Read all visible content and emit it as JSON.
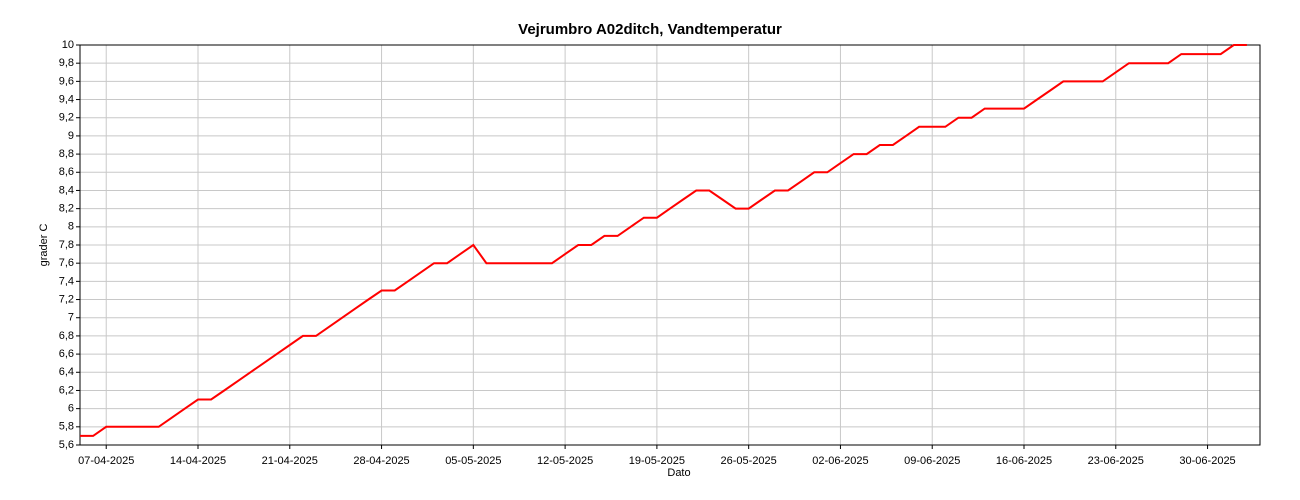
{
  "chart_data": {
    "type": "line",
    "title": "Vejrumbro A02ditch, Vandtemperatur",
    "x_label": "Dato",
    "y_label": "grader C",
    "x": [
      "05-04-2025",
      "06-04-2025",
      "07-04-2025",
      "08-04-2025",
      "09-04-2025",
      "10-04-2025",
      "11-04-2025",
      "12-04-2025",
      "13-04-2025",
      "14-04-2025",
      "15-04-2025",
      "16-04-2025",
      "17-04-2025",
      "18-04-2025",
      "19-04-2025",
      "20-04-2025",
      "21-04-2025",
      "22-04-2025",
      "23-04-2025",
      "24-04-2025",
      "25-04-2025",
      "26-04-2025",
      "27-04-2025",
      "28-04-2025",
      "29-04-2025",
      "30-04-2025",
      "01-05-2025",
      "02-05-2025",
      "03-05-2025",
      "04-05-2025",
      "05-05-2025",
      "06-05-2025",
      "07-05-2025",
      "08-05-2025",
      "09-05-2025",
      "10-05-2025",
      "11-05-2025",
      "12-05-2025",
      "13-05-2025",
      "14-05-2025",
      "15-05-2025",
      "16-05-2025",
      "17-05-2025",
      "18-05-2025",
      "19-05-2025",
      "20-05-2025",
      "21-05-2025",
      "22-05-2025",
      "23-05-2025",
      "24-05-2025",
      "25-05-2025",
      "26-05-2025",
      "27-05-2025",
      "28-05-2025",
      "29-05-2025",
      "30-05-2025",
      "31-05-2025",
      "01-06-2025",
      "02-06-2025",
      "03-06-2025",
      "04-06-2025",
      "05-06-2025",
      "06-06-2025",
      "07-06-2025",
      "08-06-2025",
      "09-06-2025",
      "10-06-2025",
      "11-06-2025",
      "12-06-2025",
      "13-06-2025",
      "14-06-2025",
      "15-06-2025",
      "16-06-2025",
      "17-06-2025",
      "18-06-2025",
      "19-06-2025",
      "20-06-2025",
      "21-06-2025",
      "22-06-2025",
      "23-06-2025",
      "24-06-2025",
      "25-06-2025",
      "26-06-2025",
      "27-06-2025",
      "28-06-2025",
      "29-06-2025",
      "30-06-2025",
      "01-07-2025",
      "02-07-2025",
      "03-07-2025"
    ],
    "series": [
      {
        "name": "Vandtemperatur",
        "color": "#ff0000",
        "values": [
          5.7,
          5.7,
          5.8,
          5.8,
          5.8,
          5.8,
          5.8,
          5.9,
          6.0,
          6.1,
          6.1,
          6.2,
          6.3,
          6.4,
          6.5,
          6.6,
          6.7,
          6.8,
          6.8,
          6.9,
          7.0,
          7.1,
          7.2,
          7.3,
          7.3,
          7.4,
          7.5,
          7.6,
          7.6,
          7.7,
          7.8,
          7.6,
          7.6,
          7.6,
          7.6,
          7.6,
          7.6,
          7.7,
          7.8,
          7.8,
          7.9,
          7.9,
          8.0,
          8.1,
          8.1,
          8.2,
          8.3,
          8.4,
          8.4,
          8.3,
          8.2,
          8.2,
          8.3,
          8.4,
          8.4,
          8.5,
          8.6,
          8.6,
          8.7,
          8.8,
          8.8,
          8.9,
          8.9,
          9.0,
          9.1,
          9.1,
          9.1,
          9.2,
          9.2,
          9.3,
          9.3,
          9.3,
          9.3,
          9.4,
          9.5,
          9.6,
          9.6,
          9.6,
          9.6,
          9.7,
          9.8,
          9.8,
          9.8,
          9.8,
          9.9,
          9.9,
          9.9,
          9.9,
          10.0,
          10.0
        ]
      }
    ],
    "xlim": [
      "05-04-2025",
      "04-07-2025"
    ],
    "xticks": [
      "07-04-2025",
      "14-04-2025",
      "21-04-2025",
      "28-04-2025",
      "05-05-2025",
      "12-05-2025",
      "19-05-2025",
      "26-05-2025",
      "02-06-2025",
      "09-06-2025",
      "16-06-2025",
      "23-06-2025",
      "30-06-2025"
    ],
    "ylim": [
      5.6,
      10
    ],
    "yticks": [
      {
        "value": 5.6,
        "label": "5,6"
      },
      {
        "value": 5.8,
        "label": "5,8"
      },
      6,
      {
        "value": 6.2,
        "label": "6,2"
      },
      {
        "value": 6.4,
        "label": "6,4"
      },
      {
        "value": 6.6,
        "label": "6,6"
      },
      {
        "value": 6.8,
        "label": "6,8"
      },
      7,
      {
        "value": 7.2,
        "label": "7,2"
      },
      {
        "value": 7.4,
        "label": "7,4"
      },
      {
        "value": 7.6,
        "label": "7,6"
      },
      {
        "value": 7.8,
        "label": "7,8"
      },
      8,
      {
        "value": 8.2,
        "label": "8,2"
      },
      {
        "value": 8.4,
        "label": "8,4"
      },
      {
        "value": 8.6,
        "label": "8,6"
      },
      {
        "value": 8.8,
        "label": "8,8"
      },
      9,
      {
        "value": 9.2,
        "label": "9,2"
      },
      {
        "value": 9.4,
        "label": "9,4"
      },
      {
        "value": 9.6,
        "label": "9,6"
      },
      {
        "value": 9.8,
        "label": "9,8"
      },
      10
    ],
    "grid": true
  }
}
